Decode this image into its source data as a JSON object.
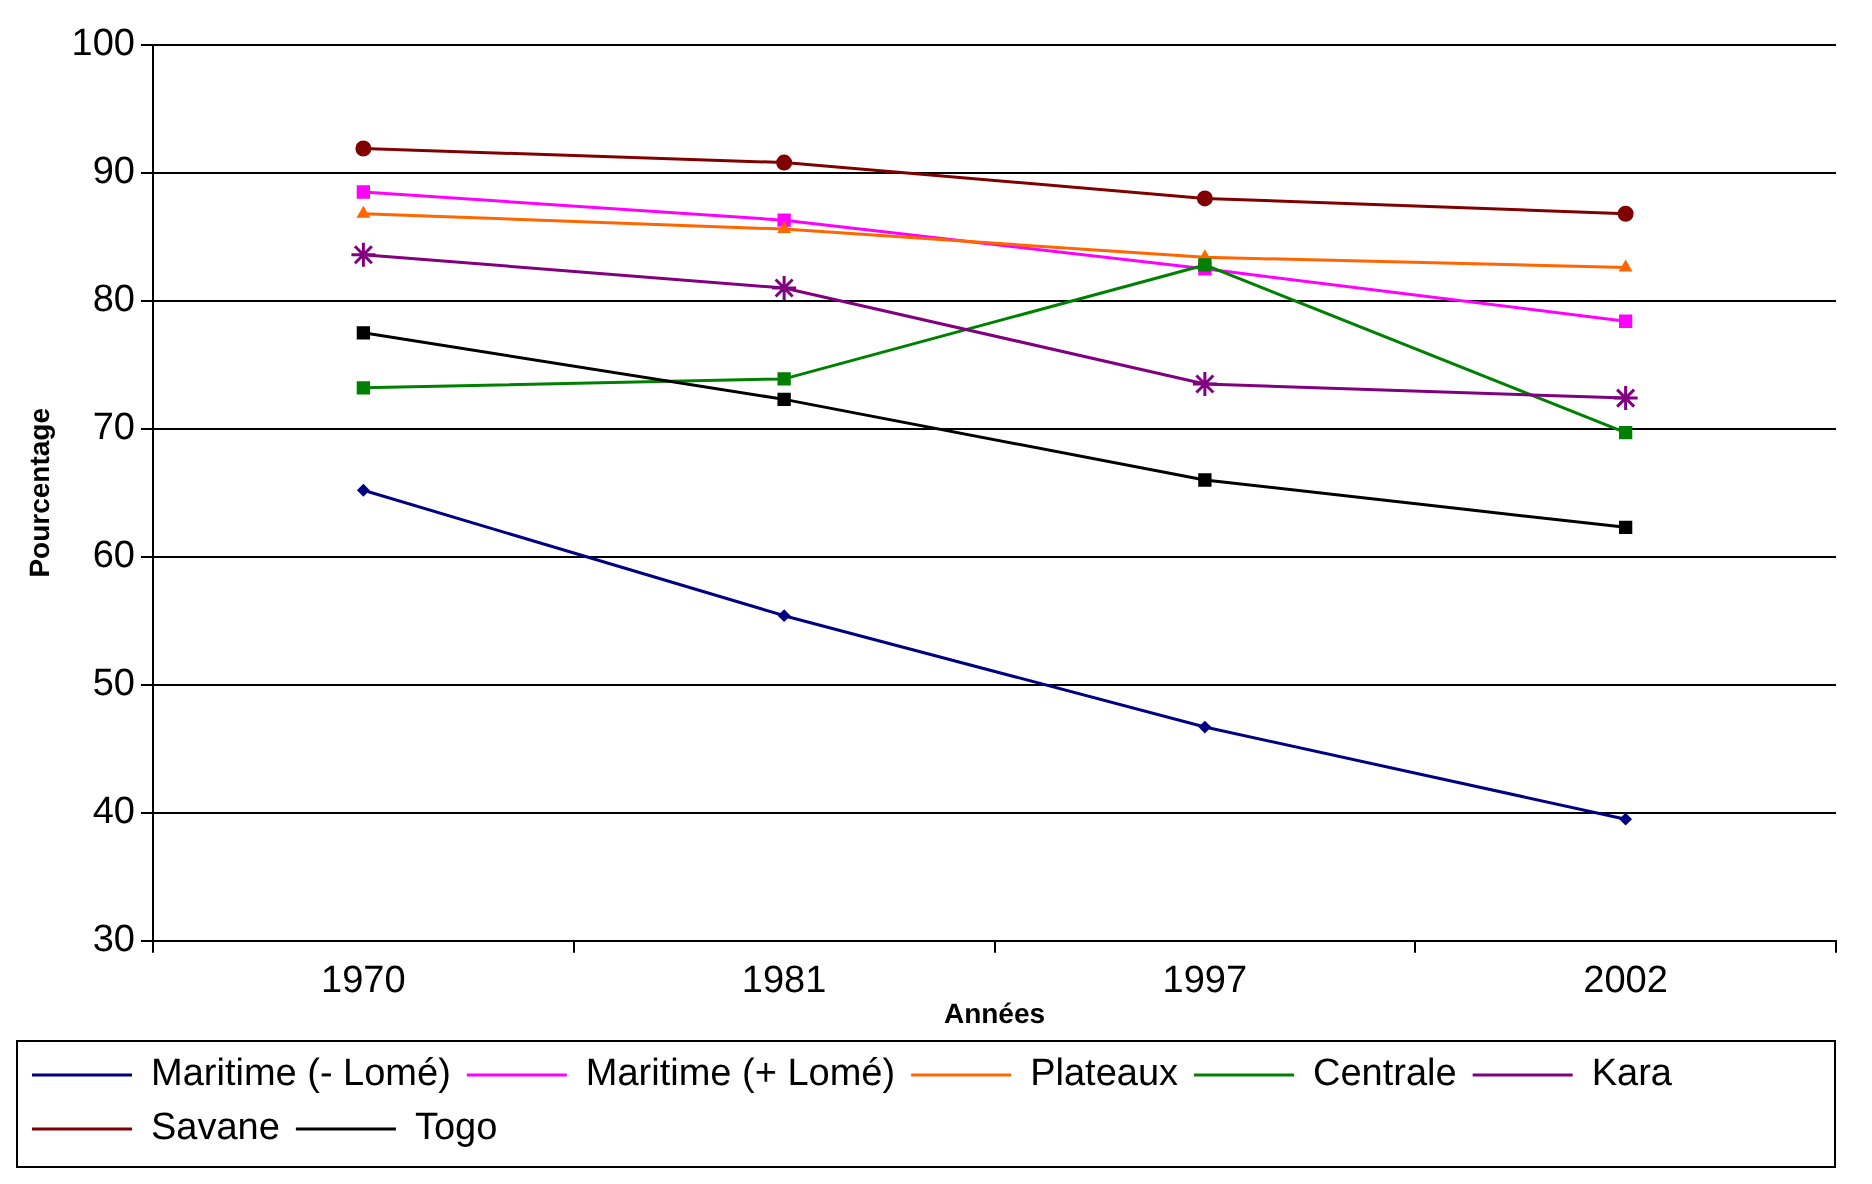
{
  "chart_data": {
    "type": "line",
    "xlabel": "Années",
    "ylabel": "Pourcentage",
    "categories": [
      "1970",
      "1981",
      "1997",
      "2002"
    ],
    "ylim": [
      30,
      100
    ],
    "yticks": [
      30,
      40,
      50,
      60,
      70,
      80,
      90,
      100
    ],
    "grid": "y",
    "legend": "bottom",
    "series": [
      {
        "name": "Maritime (- Lomé)",
        "color": "#000080",
        "marker": "diamond",
        "values": [
          65.2,
          55.4,
          46.7,
          39.5
        ]
      },
      {
        "name": "Maritime (+ Lomé)",
        "color": "#ff00ff",
        "marker": "square",
        "values": [
          88.5,
          86.3,
          82.5,
          78.4
        ]
      },
      {
        "name": "Plateaux",
        "color": "#ff6600",
        "marker": "triangle",
        "values": [
          86.8,
          85.6,
          83.4,
          82.6
        ]
      },
      {
        "name": "Centrale",
        "color": "#008000",
        "marker": "square",
        "values": [
          73.2,
          73.9,
          82.8,
          69.7
        ]
      },
      {
        "name": "Kara",
        "color": "#800080",
        "marker": "cross",
        "values": [
          83.6,
          81.0,
          73.5,
          72.4
        ]
      },
      {
        "name": "Savane",
        "color": "#800000",
        "marker": "circle",
        "values": [
          91.9,
          90.8,
          88.0,
          86.8
        ]
      },
      {
        "name": "Togo",
        "color": "#000000",
        "marker": "square",
        "values": [
          77.5,
          72.3,
          66.0,
          62.3
        ]
      }
    ]
  }
}
